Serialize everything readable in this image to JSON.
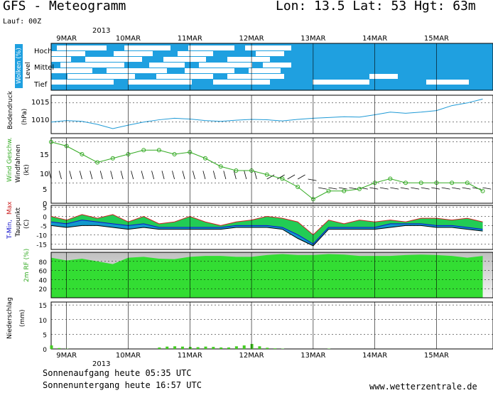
{
  "header": {
    "title": "GFS - Meteogramm",
    "location": "Lon: 13.5 Lat: 53 Hgt: 63m",
    "run": "Lauf: 00Z"
  },
  "time_axis": {
    "year": "2013",
    "labels": [
      "9MAR",
      "10MAR",
      "11MAR",
      "12MAR",
      "13MAR",
      "14MAR",
      "15MAR"
    ]
  },
  "panels": {
    "clouds": {
      "label": "Wolken (%)",
      "levels": [
        "Hoch",
        "Mittel",
        "Tief"
      ],
      "level_title": "Level"
    },
    "pressure": {
      "label1": "Bodendruck",
      "label2": "(hPa)",
      "ticks": [
        "1015",
        "1010"
      ]
    },
    "wind": {
      "label1": "Wind Geschw.",
      "label2": "Windfahnen",
      "label3": "(kt)",
      "ticks": [
        "15",
        "10",
        "5",
        "0"
      ]
    },
    "temp": {
      "label_min": "T-Min,",
      "label_max": "Max",
      "label2": "Taupunkt",
      "label3": "(C)",
      "ticks": [
        "5",
        "0",
        "-5",
        "-10",
        "-15"
      ]
    },
    "rh": {
      "label": "2m RF (%)",
      "ticks": [
        "80",
        "60",
        "40",
        "20"
      ]
    },
    "precip": {
      "label1": "Niederschlag",
      "label2": "(mm)",
      "ticks": [
        "15",
        "10",
        "5",
        "0"
      ]
    }
  },
  "footer": {
    "sunrise": "Sonnenaufgang heute 05:35 UTC",
    "sunset": "Sonnenuntergang heute 16:57 UTC",
    "website": "www.wetterzentrale.de"
  },
  "colors": {
    "cloud": "#1fa0e0",
    "pressure": "#1f9ad6",
    "wind": "#33aa22",
    "rh": "#33dd33",
    "precip": "#44cc22",
    "tmax": "#cc2222",
    "tmin": "#1111cc",
    "band": "#22cc55",
    "band2": "#1199cc"
  },
  "chart_data": [
    {
      "type": "line",
      "title": "Bodendruck (hPa)",
      "x_unit": "hours since 2013-03-08 18Z (6-hourly)",
      "x": [
        0,
        6,
        12,
        18,
        24,
        30,
        36,
        42,
        48,
        54,
        60,
        66,
        72,
        78,
        84,
        90,
        96,
        102,
        108,
        114,
        120,
        126,
        132,
        138,
        144,
        150,
        156,
        162,
        168
      ],
      "values": [
        1010,
        1010.4,
        1010.2,
        1009.4,
        1008.3,
        1009.2,
        1010.0,
        1010.6,
        1011.0,
        1010.8,
        1010.4,
        1010.2,
        1010.5,
        1010.7,
        1010.6,
        1010.3,
        1010.7,
        1011.0,
        1011.2,
        1011.4,
        1011.3,
        1011.9,
        1012.6,
        1012.3,
        1012.6,
        1013.0,
        1014.3,
        1015.0,
        1016.0
      ],
      "ylim": [
        1007,
        1017
      ]
    },
    {
      "type": "line",
      "title": "Wind Geschw. (kt)",
      "x": [
        0,
        6,
        12,
        18,
        24,
        30,
        36,
        42,
        48,
        54,
        60,
        66,
        72,
        78,
        84,
        90,
        96,
        102,
        108,
        114,
        120,
        126,
        132,
        138,
        144,
        150,
        156,
        162,
        168
      ],
      "values": [
        15,
        14,
        12,
        10,
        11,
        12,
        13,
        13,
        12,
        12.5,
        11,
        9,
        8,
        8,
        7,
        6,
        4,
        1,
        3,
        3,
        3.5,
        5,
        6,
        5,
        5,
        5,
        5,
        5,
        3
      ],
      "ylim": [
        0,
        16
      ]
    },
    {
      "type": "area",
      "title": "T-Min, Max / Taupunkt (C)",
      "x": [
        0,
        6,
        12,
        18,
        24,
        30,
        36,
        42,
        48,
        54,
        60,
        66,
        72,
        78,
        84,
        90,
        96,
        102,
        108,
        114,
        120,
        126,
        132,
        138,
        144,
        150,
        156,
        162,
        168
      ],
      "series": [
        {
          "name": "T-Max",
          "values": [
            0,
            -2,
            1,
            -1,
            1,
            -3,
            0,
            -4,
            -3,
            0,
            -3,
            -5,
            -3,
            -2,
            0,
            -1,
            -3,
            -10,
            -2,
            -4,
            -2,
            -3,
            -2,
            -3,
            -1,
            -1,
            -2,
            -1,
            -3
          ]
        },
        {
          "name": "T-Min",
          "values": [
            -3,
            -4,
            -2,
            -3,
            -4,
            -5,
            -4,
            -6,
            -6,
            -6,
            -6,
            -6,
            -5,
            -5,
            -5,
            -6,
            -10,
            -15,
            -6,
            -6,
            -6,
            -6,
            -4,
            -4,
            -4,
            -5,
            -5,
            -6,
            -7
          ]
        },
        {
          "name": "Taupunkt",
          "values": [
            -5,
            -6,
            -5,
            -5,
            -6,
            -7,
            -6,
            -7,
            -7,
            -7,
            -7,
            -7,
            -6,
            -6,
            -6,
            -7,
            -12,
            -16,
            -7,
            -7,
            -7,
            -7,
            -6,
            -5,
            -5,
            -6,
            -6,
            -7,
            -8
          ]
        }
      ],
      "ylim": [
        -18,
        6
      ]
    },
    {
      "type": "area",
      "title": "2m RF (%)",
      "x": [
        0,
        6,
        12,
        18,
        24,
        30,
        36,
        42,
        48,
        54,
        60,
        66,
        72,
        78,
        84,
        90,
        96,
        102,
        108,
        114,
        120,
        126,
        132,
        138,
        144,
        150,
        156,
        162,
        168
      ],
      "values": [
        88,
        82,
        86,
        80,
        74,
        88,
        90,
        86,
        85,
        90,
        92,
        92,
        90,
        90,
        94,
        96,
        94,
        94,
        96,
        95,
        92,
        92,
        92,
        94,
        95,
        94,
        92,
        88,
        92
      ],
      "ylim": [
        0,
        100
      ]
    },
    {
      "type": "bar",
      "title": "Niederschlag (mm)",
      "x": [
        0,
        3,
        6,
        9,
        12,
        15,
        18,
        21,
        24,
        27,
        30,
        33,
        36,
        39,
        42,
        45,
        48,
        51,
        54,
        57,
        60,
        63,
        66,
        69,
        72,
        75,
        78,
        81,
        84,
        87,
        90,
        93,
        96,
        99,
        102,
        105,
        108,
        111,
        114,
        117,
        120,
        123,
        126,
        129,
        132,
        135,
        138,
        141,
        144,
        147,
        150,
        153,
        156,
        159,
        162,
        165,
        168
      ],
      "values": [
        1.2,
        0.3,
        0.1,
        0,
        0,
        0,
        0,
        0,
        0,
        0,
        0,
        0,
        0,
        0,
        0.5,
        0.8,
        0.9,
        0.8,
        0.7,
        0.6,
        0.8,
        0.7,
        0.5,
        0.5,
        0.9,
        1.2,
        1.7,
        0.9,
        0.4,
        0.2,
        0.1,
        0,
        0,
        0,
        0,
        0,
        0.1,
        0,
        0,
        0,
        0,
        0,
        0,
        0,
        0,
        0,
        0,
        0,
        0,
        0,
        0,
        0,
        0,
        0,
        0,
        0,
        0
      ],
      "ylim": [
        0,
        16
      ]
    }
  ]
}
